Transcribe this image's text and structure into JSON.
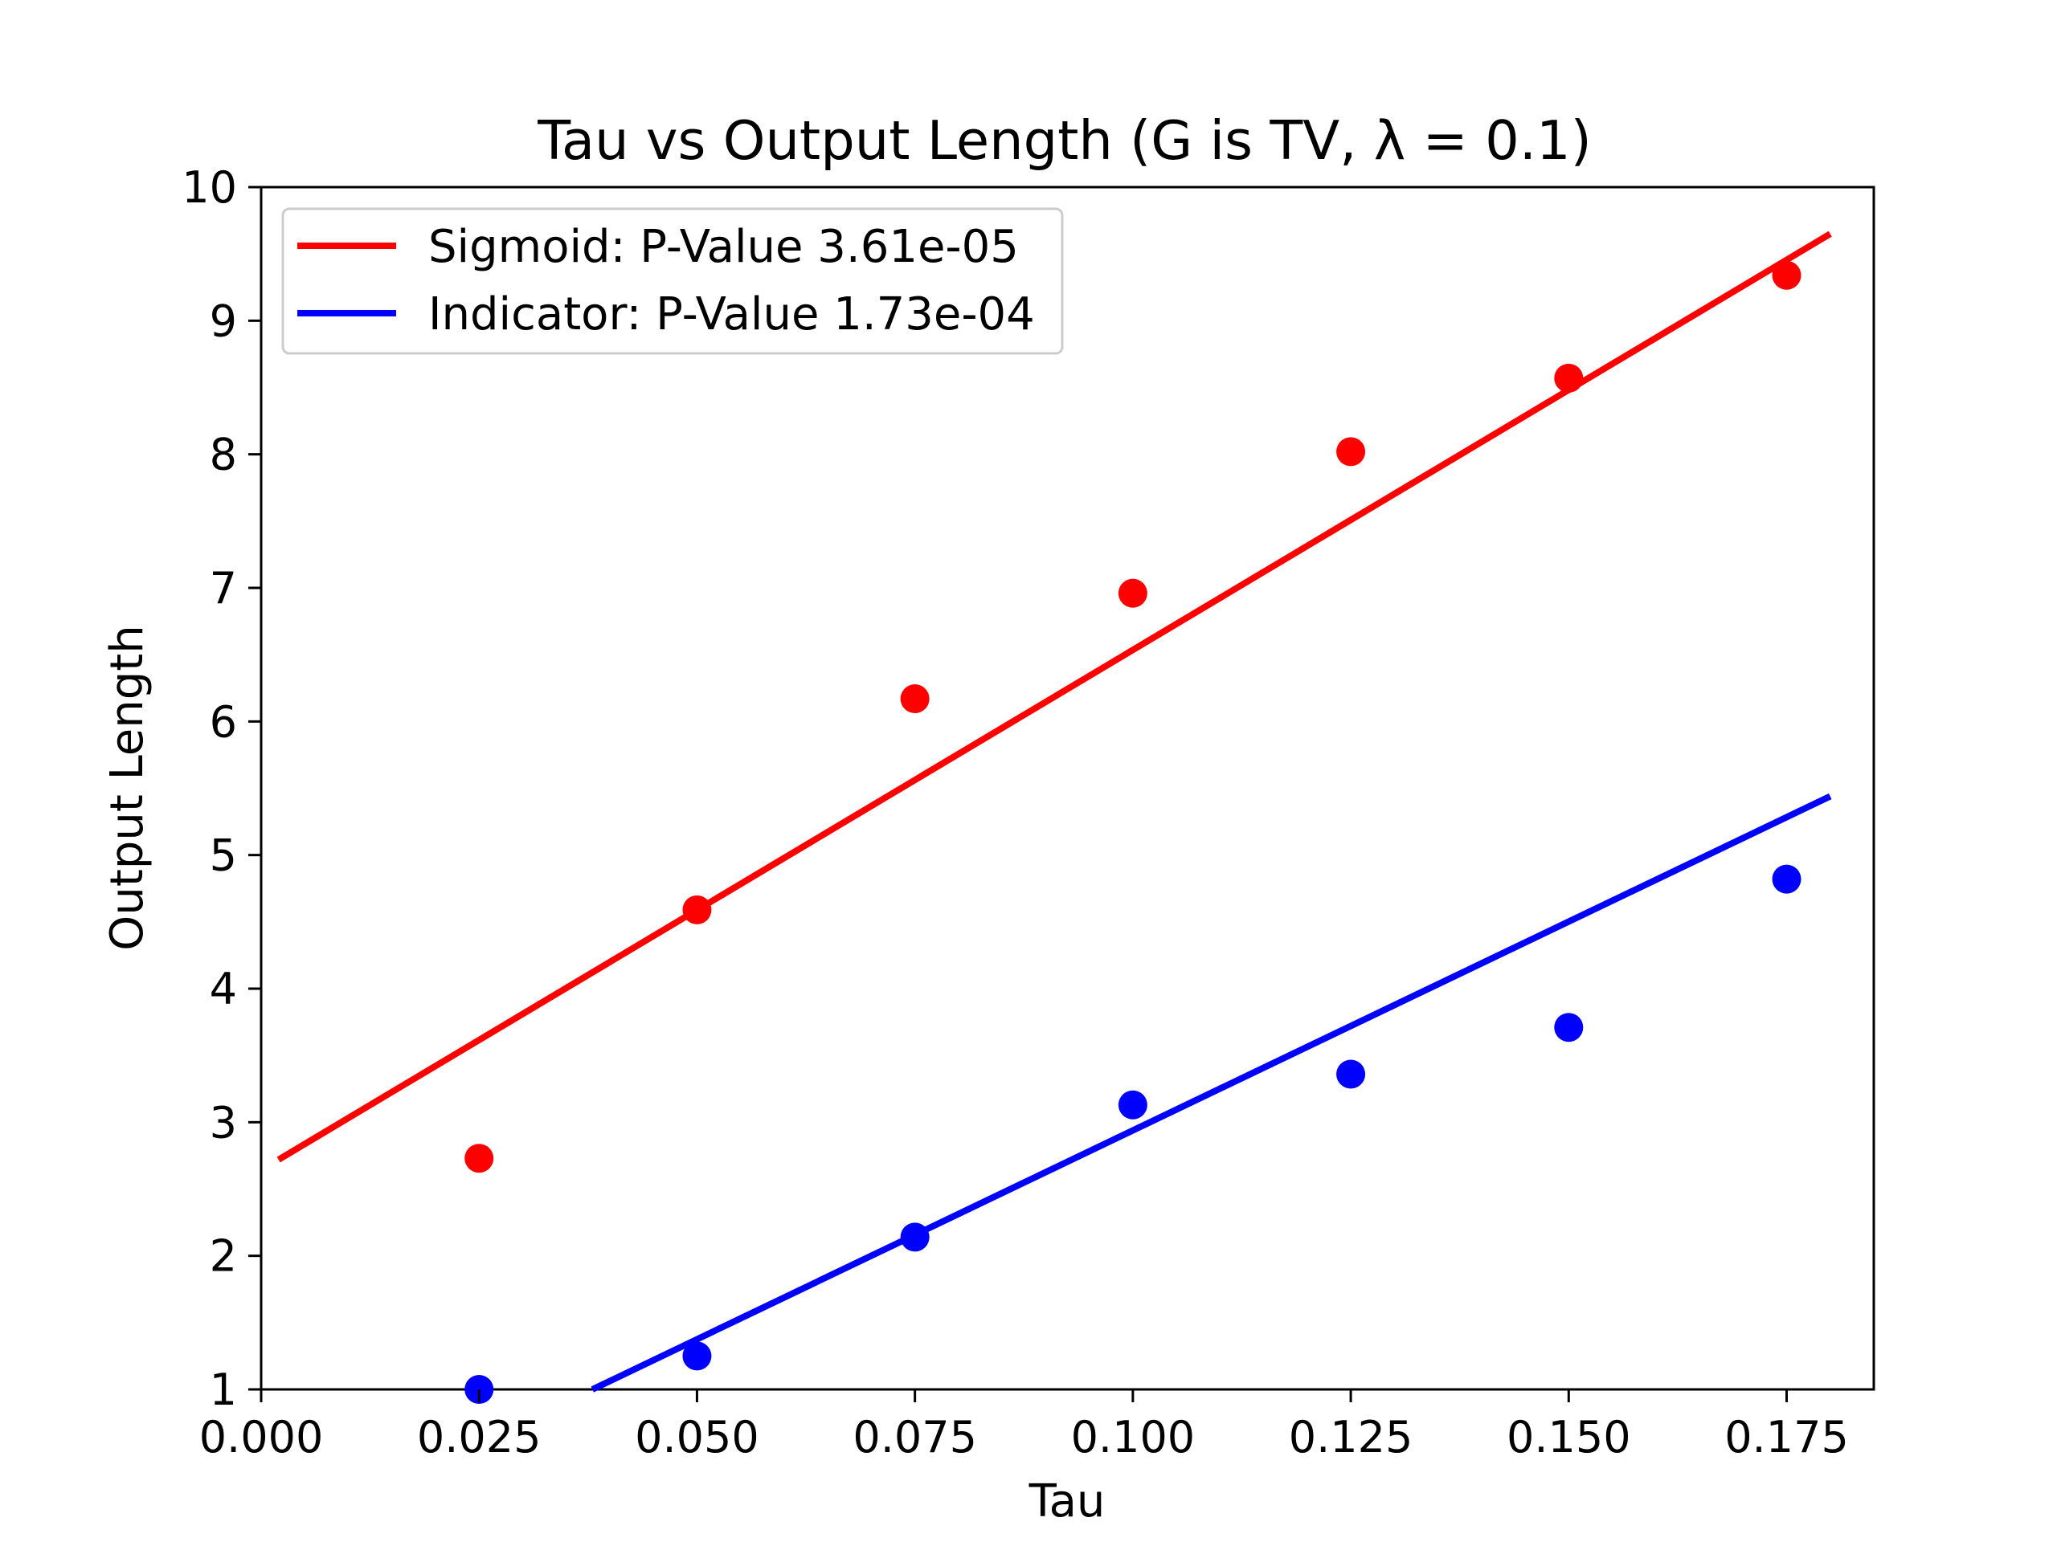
{
  "chart_data": {
    "type": "scatter",
    "title": "Tau vs Output Length (G is TV, λ = 0.1)",
    "xlabel": "Tau",
    "ylabel": "Output Length",
    "xlim": [
      0.0,
      0.185
    ],
    "ylim": [
      1,
      10
    ],
    "x_ticks": [
      "0.000",
      "0.025",
      "0.050",
      "0.075",
      "0.100",
      "0.125",
      "0.150",
      "0.175"
    ],
    "y_ticks": [
      "1",
      "2",
      "3",
      "4",
      "5",
      "6",
      "7",
      "8",
      "9",
      "10"
    ],
    "grid": false,
    "legend_position": "top-left",
    "series": [
      {
        "name": "Sigmoid: P-Value 3.61e-05",
        "color": "#ff0000",
        "points": {
          "x": [
            0.025,
            0.05,
            0.075,
            0.1,
            0.125,
            0.15,
            0.175
          ],
          "y": [
            2.73,
            4.59,
            6.17,
            6.96,
            8.02,
            8.57,
            9.34
          ]
        },
        "fit_line": {
          "x": [
            0.002,
            0.18
          ],
          "y": [
            2.72,
            9.65
          ]
        }
      },
      {
        "name": "Indicator: P-Value 1.73e-04",
        "color": "#0000ff",
        "points": {
          "x": [
            0.025,
            0.05,
            0.075,
            0.1,
            0.125,
            0.15,
            0.175
          ],
          "y": [
            1.0,
            1.25,
            2.14,
            3.13,
            3.36,
            3.71,
            4.82
          ]
        },
        "fit_line": {
          "x": [
            0.038,
            0.18
          ],
          "y": [
            1.0,
            5.44
          ]
        }
      }
    ]
  }
}
